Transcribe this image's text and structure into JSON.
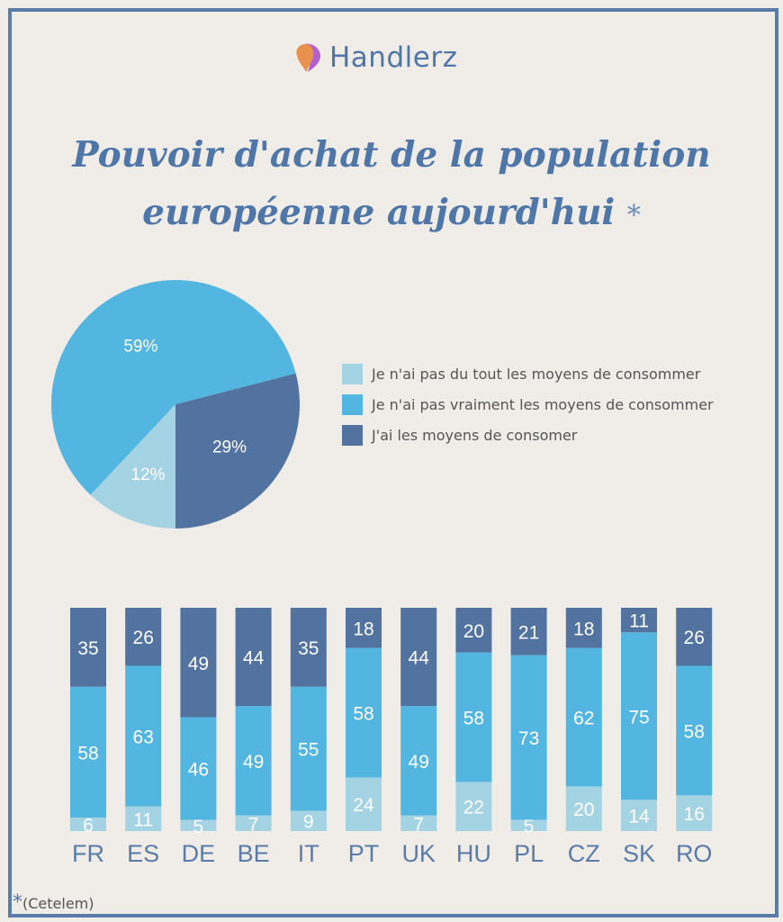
{
  "brand": {
    "name": "Handlerz"
  },
  "title": {
    "line1": "Pouvoir d'achat de la population",
    "line2": "européenne aujourd'hui",
    "marker": "*"
  },
  "colors": {
    "light": "#a4d4e4",
    "medium": "#52b6e0",
    "dark": "#52739f",
    "frame": "#5b7ca8",
    "text": "#4f76a8"
  },
  "chart_data": [
    {
      "type": "pie",
      "slices": [
        {
          "name": "J'ai les moyens de consomer",
          "value": 29,
          "label": "29%",
          "color": "#52739f"
        },
        {
          "name": "Je n'ai pas du tout les moyens de consommer",
          "value": 12,
          "label": "12%",
          "color": "#a4d4e4"
        },
        {
          "name": "Je n'ai pas vraiment les moyens de consommer",
          "value": 59,
          "label": "59%",
          "color": "#52b6e0"
        }
      ],
      "legend": [
        "Je n'ai pas du tout les moyens de consommer",
        "Je n'ai pas vraiment les moyens de consommer",
        "J'ai les moyens de consomer"
      ],
      "legend_position": "right"
    },
    {
      "type": "bar",
      "stacked": true,
      "categories": [
        "FR",
        "ES",
        "DE",
        "BE",
        "IT",
        "PT",
        "UK",
        "HU",
        "PL",
        "CZ",
        "SK",
        "RO"
      ],
      "series": [
        {
          "name": "Je n'ai pas du tout les moyens de consommer",
          "color": "#a4d4e4",
          "values": [
            6,
            11,
            5,
            7,
            9,
            24,
            7,
            22,
            5,
            20,
            14,
            16
          ]
        },
        {
          "name": "Je n'ai pas vraiment les moyens de consommer",
          "color": "#52b6e0",
          "values": [
            58,
            63,
            46,
            49,
            55,
            58,
            49,
            58,
            73,
            62,
            75,
            58
          ]
        },
        {
          "name": "J'ai les moyens de consomer",
          "color": "#52739f",
          "values": [
            35,
            26,
            49,
            44,
            35,
            18,
            44,
            20,
            21,
            18,
            11,
            26
          ]
        }
      ]
    }
  ],
  "source": {
    "marker": "*",
    "text": "(Cetelem)"
  }
}
